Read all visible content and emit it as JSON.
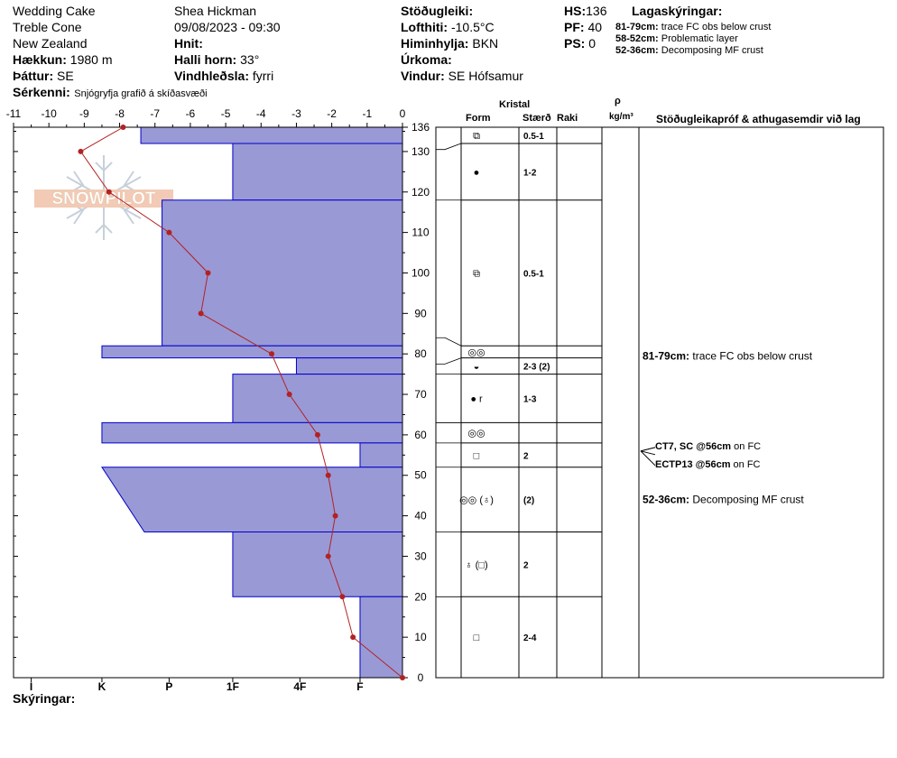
{
  "header": {
    "col1": [
      {
        "value": "Wedding Cake"
      },
      {
        "value": "Treble Cone"
      },
      {
        "value": "New Zealand"
      },
      {
        "label": "Hækkun:",
        "value": "1980 m"
      },
      {
        "label": "Þáttur:",
        "value": "SE"
      }
    ],
    "col2": [
      {
        "value": "Shea Hickman"
      },
      {
        "value": "09/08/2023 - 09:30"
      },
      {
        "label": "Hnit:",
        "value": ""
      },
      {
        "label": "Halli horn:",
        "value": "33°"
      },
      {
        "label": "Vindhleðsla:",
        "value": "fyrri"
      }
    ],
    "col3": [
      {
        "label": "Stöðugleiki:",
        "value": ""
      },
      {
        "label": "Lofthiti:",
        "value": "-10.5°C"
      },
      {
        "label": "Himinhylja:",
        "value": "BKN"
      },
      {
        "label": "Úrkoma:",
        "value": ""
      },
      {
        "label": "Vindur:",
        "value": "SE Hófsamur"
      }
    ],
    "col4": [
      {
        "label": "HS:",
        "value": "136"
      },
      {
        "label": "PF:",
        "value": "40"
      },
      {
        "label": "PS:",
        "value": "0"
      }
    ],
    "serkenni_label": "Sérkenni:",
    "serkenni_value": "Snjógryfja grafið á skíðasvæði"
  },
  "legend": {
    "title": "Lagaskýringar:",
    "items": [
      {
        "range": "81-79cm:",
        "text": "trace FC obs below crust"
      },
      {
        "range": "58-52cm:",
        "text": "Problematic layer"
      },
      {
        "range": "52-36cm:",
        "text": "Decomposing MF crust"
      }
    ]
  },
  "logo_text": "SNOWPILOT",
  "footer": {
    "label": "Skýringar:"
  },
  "colors": {
    "hardness_fill": "#9999d6",
    "hardness_stroke": "#0000cc",
    "temp": "#b22222"
  },
  "columns": {
    "kristal": "Kristal",
    "form": "Form",
    "size": "Stærð",
    "moisture": "Raki",
    "rho": "ρ",
    "density_unit": "kg/m³",
    "tests": "Stöðugleikapróf & athugasemdir við lag"
  },
  "chart_data": {
    "type": "snow-profile",
    "temp_axis": {
      "ticks": [
        -11,
        -10,
        -9,
        -8,
        -7,
        -6,
        -5,
        -4,
        -3,
        -2,
        -1,
        0
      ],
      "range": [
        -11,
        0
      ]
    },
    "depth_axis": {
      "ticks": [
        0,
        10,
        20,
        30,
        40,
        50,
        60,
        70,
        80,
        90,
        100,
        110,
        120,
        130,
        136
      ],
      "range": [
        0,
        136
      ]
    },
    "hardness_axis": {
      "labels": [
        "I",
        "K",
        "P",
        "1F",
        "4F",
        "F"
      ],
      "values": [
        10.5,
        8.5,
        6.6,
        4.8,
        2.9,
        1.2
      ]
    },
    "hardness_layers": [
      {
        "bottom": 132,
        "top": 136,
        "h_top": 7.4,
        "h_bottom": 7.4
      },
      {
        "bottom": 118,
        "top": 132,
        "h_top": 4.8,
        "h_bottom": 4.8
      },
      {
        "bottom": 82,
        "top": 118,
        "h_top": 6.8,
        "h_bottom": 6.8
      },
      {
        "bottom": 79,
        "top": 82,
        "h_top": 8.5,
        "h_bottom": 8.5
      },
      {
        "bottom": 75,
        "top": 79,
        "h_top": 3.0,
        "h_bottom": 3.0
      },
      {
        "bottom": 63,
        "top": 75,
        "h_top": 4.8,
        "h_bottom": 4.8
      },
      {
        "bottom": 58,
        "top": 63,
        "h_top": 8.5,
        "h_bottom": 8.5
      },
      {
        "bottom": 52,
        "top": 58,
        "h_top": 1.2,
        "h_bottom": 1.2
      },
      {
        "bottom": 36,
        "top": 52,
        "h_top": 8.5,
        "h_bottom": 7.3
      },
      {
        "bottom": 20,
        "top": 36,
        "h_top": 4.8,
        "h_bottom": 4.8
      },
      {
        "bottom": 0,
        "top": 20,
        "h_top": 1.2,
        "h_bottom": 1.2
      }
    ],
    "temperature": [
      {
        "depth": 136,
        "temp": -7.9
      },
      {
        "depth": 130,
        "temp": -9.1
      },
      {
        "depth": 120,
        "temp": -8.3
      },
      {
        "depth": 110,
        "temp": -6.6
      },
      {
        "depth": 100,
        "temp": -5.5
      },
      {
        "depth": 90,
        "temp": -5.7
      },
      {
        "depth": 80,
        "temp": -3.7
      },
      {
        "depth": 70,
        "temp": -3.2
      },
      {
        "depth": 60,
        "temp": -2.4
      },
      {
        "depth": 50,
        "temp": -2.1
      },
      {
        "depth": 40,
        "temp": -1.9
      },
      {
        "depth": 30,
        "temp": -2.1
      },
      {
        "depth": 20,
        "temp": -1.7
      },
      {
        "depth": 10,
        "temp": -1.4
      },
      {
        "depth": 0,
        "temp": 0.0
      }
    ],
    "layer_boundaries": [
      136,
      132,
      118,
      82,
      79,
      75,
      63,
      58,
      52,
      36,
      20,
      0
    ],
    "crystals": [
      {
        "depth": 134,
        "form": "⧉",
        "size": "0.5-1"
      },
      {
        "depth": 125,
        "form": "●",
        "size": "1-2"
      },
      {
        "depth": 100,
        "form": "⧉",
        "size": "0.5-1"
      },
      {
        "depth": 80.5,
        "form": "◎◎",
        "size": ""
      },
      {
        "depth": 77,
        "form": "◒",
        "size": "2-3 (2)"
      },
      {
        "depth": 69,
        "form": "● r",
        "size": "1-3"
      },
      {
        "depth": 60.5,
        "form": "◎◎",
        "size": ""
      },
      {
        "depth": 55,
        "form": "□",
        "size": "2"
      },
      {
        "depth": 44,
        "form": "◎◎ (♁)",
        "size": "(2)"
      },
      {
        "depth": 28,
        "form": "♁ (□)",
        "size": "2"
      },
      {
        "depth": 10,
        "form": "□",
        "size": "2-4"
      }
    ],
    "comments": [
      {
        "depth": 79.5,
        "bold": "81-79cm:",
        "text": "trace FC obs below crust"
      },
      {
        "depth": 44,
        "bold": "52-36cm:",
        "text": "Decomposing MF crust"
      }
    ],
    "tests": [
      {
        "depth": 56,
        "bold": "CT7, SC @56cm",
        "text": "on FC"
      },
      {
        "depth": 56,
        "bold": "ECTP13 @56cm",
        "text": "on FC"
      }
    ]
  }
}
